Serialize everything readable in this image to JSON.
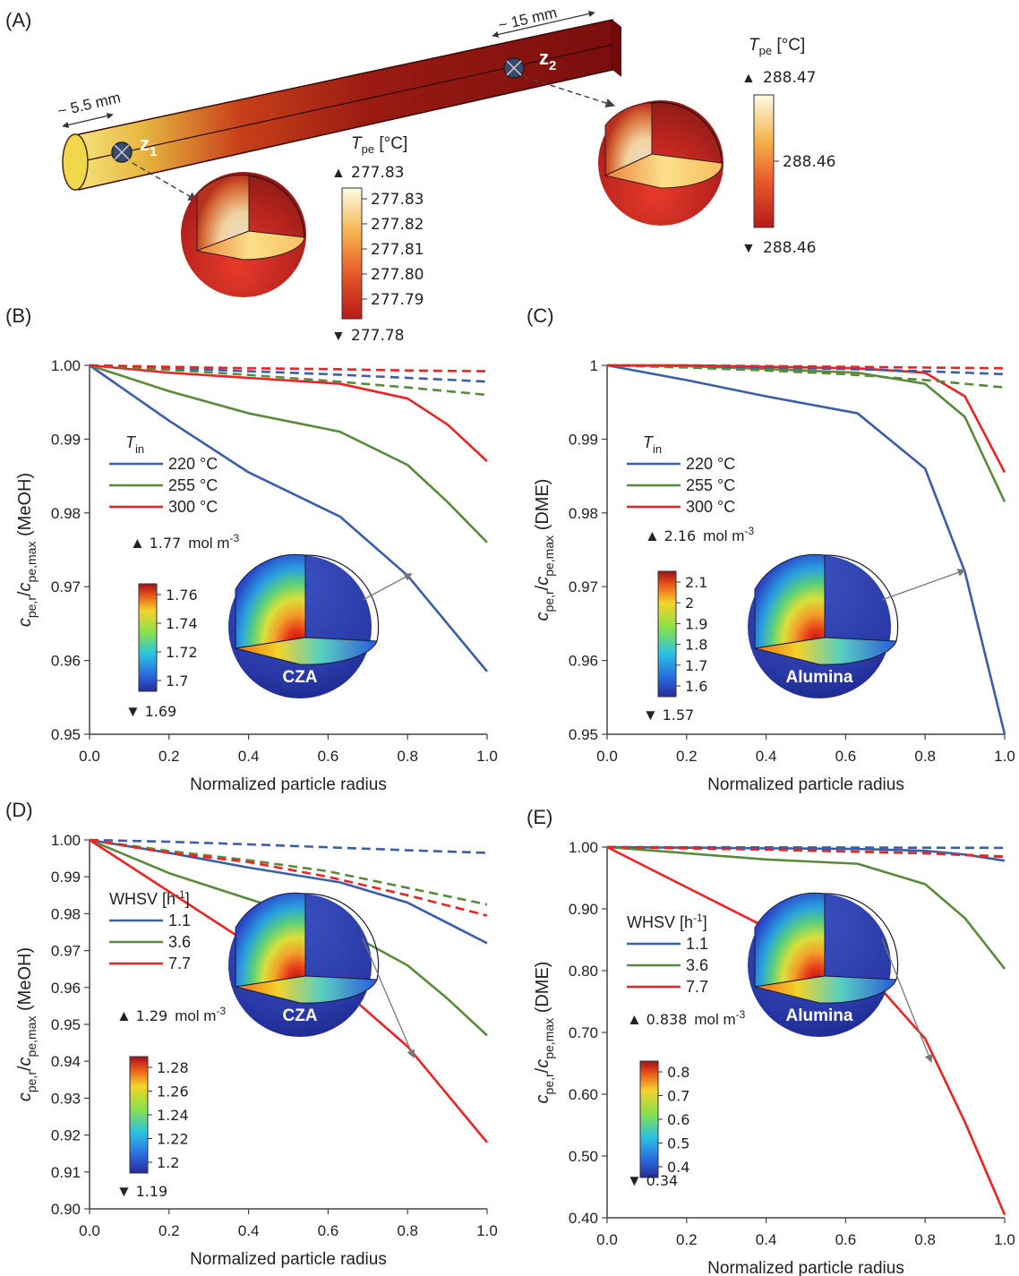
{
  "panelA": {
    "label": "(A)",
    "dim_left": "~ 5.5 mm",
    "dim_right": "~ 15 mm",
    "z1": "z",
    "z1_sub": "1",
    "z2": "z",
    "z2_sub": "2",
    "leg1": {
      "title_T": "T",
      "title_sub": "pe",
      "title_unit": " [°C]",
      "max": "277.83",
      "min": "277.78",
      "ticks": [
        "277.83",
        "277.82",
        "277.81",
        "277.80",
        "277.79"
      ]
    },
    "leg2": {
      "title_T": "T",
      "title_sub": "pe",
      "title_unit": " [°C]",
      "max": "288.47",
      "min": "288.46",
      "ticks": [
        "288.46"
      ]
    }
  },
  "colors": {
    "blue": "#3a5ea8",
    "green": "#5a8a3a",
    "red": "#ee2222"
  },
  "chart_data": [
    {
      "id": "B",
      "label": "(B)",
      "type": "line",
      "xlabel": "Normalized particle radius",
      "ylabel_main": "c",
      "ylabel_sub1": "pe,r",
      "ylabel_sep": "/",
      "ylabel_main2": "c",
      "ylabel_sub2": "pe,max",
      "ylabel_tail": " (MeOH)",
      "xlim": [
        0,
        1
      ],
      "ylim": [
        0.95,
        1.0
      ],
      "xticks": [
        "0.0",
        "0.2",
        "0.4",
        "0.6",
        "0.8",
        "1.0"
      ],
      "yticks": [
        "0.95",
        "0.96",
        "0.97",
        "0.98",
        "0.99",
        "1.00"
      ],
      "ytick_values": [
        0.95,
        0.96,
        0.97,
        0.98,
        0.99,
        1.0
      ],
      "legend_title": "T",
      "legend_title_sub": "in",
      "series": [
        {
          "name": "220 °C",
          "color": "blue",
          "style": "solid",
          "x": [
            0,
            0.2,
            0.4,
            0.63,
            0.8,
            0.9,
            1.0
          ],
          "y": [
            1.0,
            0.9925,
            0.9855,
            0.9795,
            0.9715,
            0.965,
            0.9585
          ]
        },
        {
          "name": "255 °C",
          "color": "green",
          "style": "solid",
          "x": [
            0,
            0.2,
            0.4,
            0.63,
            0.8,
            0.9,
            1.0
          ],
          "y": [
            1.0,
            0.9965,
            0.9935,
            0.991,
            0.9865,
            0.9815,
            0.976
          ]
        },
        {
          "name": "300 °C",
          "color": "red",
          "style": "solid",
          "x": [
            0,
            0.2,
            0.4,
            0.63,
            0.8,
            0.9,
            1.0
          ],
          "y": [
            1.0,
            0.999,
            0.9983,
            0.9975,
            0.9955,
            0.992,
            0.987
          ]
        },
        {
          "name": "",
          "color": "blue",
          "style": "dashed",
          "x": [
            0,
            0.2,
            0.4,
            0.6,
            0.8,
            1.0
          ],
          "y": [
            1.0,
            0.9996,
            0.9992,
            0.9988,
            0.9983,
            0.9978
          ]
        },
        {
          "name": "",
          "color": "green",
          "style": "dashed",
          "x": [
            0,
            0.2,
            0.4,
            0.6,
            0.8,
            1.0
          ],
          "y": [
            1.0,
            0.9994,
            0.9987,
            0.9979,
            0.997,
            0.996
          ]
        },
        {
          "name": "",
          "color": "red",
          "style": "dashed",
          "x": [
            0,
            0.2,
            0.4,
            0.6,
            0.8,
            1.0
          ],
          "y": [
            1.0,
            0.9998,
            0.9996,
            0.9995,
            0.9993,
            0.9992
          ]
        }
      ],
      "inset": {
        "max": "1.77",
        "unit": "mol m",
        "unit_sup": "-3",
        "min": "1.69",
        "ticks": [
          "1.76",
          "1.74",
          "1.72",
          "1.7"
        ],
        "name": "CZA"
      }
    },
    {
      "id": "C",
      "label": "(C)",
      "type": "line",
      "xlabel": "Normalized particle radius",
      "ylabel_main": "c",
      "ylabel_sub1": "pe,r",
      "ylabel_sep": "/",
      "ylabel_main2": "c",
      "ylabel_sub2": "pe,max",
      "ylabel_tail": " (DME)",
      "xlim": [
        0,
        1
      ],
      "ylim": [
        0.95,
        1.0
      ],
      "xticks": [
        "0.0",
        "0.2",
        "0.4",
        "0.6",
        "0.8",
        "1.0"
      ],
      "yticks": [
        "0.95",
        "0.96",
        "0.97",
        "0.98",
        "0.99",
        "1"
      ],
      "ytick_values": [
        0.95,
        0.96,
        0.97,
        0.98,
        0.99,
        1.0
      ],
      "legend_title": "T",
      "legend_title_sub": "in",
      "series": [
        {
          "name": "220 °C",
          "color": "blue",
          "style": "solid",
          "x": [
            0,
            0.2,
            0.4,
            0.63,
            0.8,
            0.9,
            1.0
          ],
          "y": [
            1.0,
            0.998,
            0.9958,
            0.9935,
            0.986,
            0.972,
            0.95
          ]
        },
        {
          "name": "255 °C",
          "color": "green",
          "style": "solid",
          "x": [
            0,
            0.2,
            0.4,
            0.63,
            0.8,
            0.9,
            1.0
          ],
          "y": [
            1.0,
            0.9999,
            0.9995,
            0.999,
            0.9975,
            0.993,
            0.9815
          ]
        },
        {
          "name": "300 °C",
          "color": "red",
          "style": "solid",
          "x": [
            0,
            0.2,
            0.4,
            0.63,
            0.8,
            0.9,
            1.0
          ],
          "y": [
            1.0,
            1.0,
            0.9998,
            0.9996,
            0.999,
            0.9958,
            0.9855
          ]
        },
        {
          "name": "",
          "color": "blue",
          "style": "dashed",
          "x": [
            0,
            0.2,
            0.4,
            0.6,
            0.8,
            1.0
          ],
          "y": [
            1.0,
            0.9999,
            0.9997,
            0.9995,
            0.9992,
            0.9988
          ]
        },
        {
          "name": "",
          "color": "green",
          "style": "dashed",
          "x": [
            0,
            0.2,
            0.4,
            0.6,
            0.8,
            1.0
          ],
          "y": [
            1.0,
            0.9997,
            0.9993,
            0.9988,
            0.998,
            0.997
          ]
        },
        {
          "name": "",
          "color": "red",
          "style": "dashed",
          "x": [
            0,
            0.2,
            0.4,
            0.6,
            0.8,
            1.0
          ],
          "y": [
            1.0,
            1.0,
            0.9999,
            0.9998,
            0.9997,
            0.9996
          ]
        }
      ],
      "inset": {
        "max": "2.16",
        "unit": "mol m",
        "unit_sup": "-3",
        "min": "1.57",
        "ticks": [
          "2.1",
          "2",
          "1.9",
          "1.8",
          "1.7",
          "1.6"
        ],
        "name": "Alumina"
      }
    },
    {
      "id": "D",
      "label": "(D)",
      "type": "line",
      "xlabel": "Normalized particle radius",
      "ylabel_main": "c",
      "ylabel_sub1": "pe,r",
      "ylabel_sep": "/",
      "ylabel_main2": "c",
      "ylabel_sub2": "pe,max",
      "ylabel_tail": " (MeOH)",
      "xlim": [
        0,
        1
      ],
      "ylim": [
        0.9,
        1.0
      ],
      "xticks": [
        "0.0",
        "0.2",
        "0.4",
        "0.6",
        "0.8",
        "1.0"
      ],
      "yticks": [
        "0.90",
        "0.91",
        "0.92",
        "0.93",
        "0.94",
        "0.95",
        "0.96",
        "0.97",
        "0.98",
        "0.99",
        "1.00"
      ],
      "ytick_values": [
        0.9,
        0.91,
        0.92,
        0.93,
        0.94,
        0.95,
        0.96,
        0.97,
        0.98,
        0.99,
        1.0
      ],
      "legend_title": "WHSV [h",
      "legend_title_sup": "-1",
      "legend_title_tail": "]",
      "series": [
        {
          "name": "1.1",
          "color": "blue",
          "style": "solid",
          "x": [
            0,
            0.2,
            0.4,
            0.63,
            0.8,
            0.9,
            1.0
          ],
          "y": [
            1.0,
            0.9965,
            0.9925,
            0.9885,
            0.983,
            0.9775,
            0.972
          ]
        },
        {
          "name": "3.6",
          "color": "green",
          "style": "solid",
          "x": [
            0,
            0.2,
            0.4,
            0.63,
            0.8,
            0.9,
            1.0
          ],
          "y": [
            1.0,
            0.991,
            0.984,
            0.976,
            0.966,
            0.957,
            0.947
          ]
        },
        {
          "name": "7.7",
          "color": "red",
          "style": "solid",
          "x": [
            0,
            0.2,
            0.4,
            0.63,
            0.8,
            0.9,
            1.0
          ],
          "y": [
            1.0,
            0.986,
            0.972,
            0.96,
            0.944,
            0.931,
            0.918
          ]
        },
        {
          "name": "",
          "color": "blue",
          "style": "dashed",
          "x": [
            0,
            0.2,
            0.4,
            0.6,
            0.8,
            1.0
          ],
          "y": [
            1.0,
            0.9995,
            0.9988,
            0.998,
            0.9972,
            0.9965
          ]
        },
        {
          "name": "",
          "color": "green",
          "style": "dashed",
          "x": [
            0,
            0.2,
            0.4,
            0.6,
            0.8,
            1.0
          ],
          "y": [
            1.0,
            0.997,
            0.9945,
            0.9915,
            0.987,
            0.9825
          ]
        },
        {
          "name": "",
          "color": "red",
          "style": "dashed",
          "x": [
            0,
            0.2,
            0.4,
            0.6,
            0.8,
            1.0
          ],
          "y": [
            1.0,
            0.9965,
            0.994,
            0.99,
            0.985,
            0.9795
          ]
        }
      ],
      "inset": {
        "max": "1.29",
        "unit": "mol m",
        "unit_sup": "-3",
        "min": "1.19",
        "ticks": [
          "1.28",
          "1.26",
          "1.24",
          "1.22",
          "1.2"
        ],
        "name": "CZA"
      }
    },
    {
      "id": "E",
      "label": "(E)",
      "type": "line",
      "xlabel": "Normalized particle radius",
      "ylabel_main": "c",
      "ylabel_sub1": "pe,r",
      "ylabel_sep": "/",
      "ylabel_main2": "c",
      "ylabel_sub2": "pe,max",
      "ylabel_tail": " (DME)",
      "xlim": [
        0,
        1
      ],
      "ylim": [
        0.4,
        1.0
      ],
      "xticks": [
        "0.0",
        "0.2",
        "0.4",
        "0.6",
        "0.8",
        "1.0"
      ],
      "yticks": [
        "0.40",
        "0.50",
        "0.60",
        "0.70",
        "0.80",
        "0.90",
        "1.00"
      ],
      "ytick_values": [
        0.4,
        0.5,
        0.6,
        0.7,
        0.8,
        0.9,
        1.0
      ],
      "legend_title": "WHSV [h",
      "legend_title_sup": "-1",
      "legend_title_tail": "]",
      "series": [
        {
          "name": "1.1",
          "color": "blue",
          "style": "solid",
          "x": [
            0,
            0.2,
            0.4,
            0.63,
            0.8,
            0.9,
            1.0
          ],
          "y": [
            1.0,
            0.999,
            0.998,
            0.997,
            0.994,
            0.988,
            0.978
          ]
        },
        {
          "name": "3.6",
          "color": "green",
          "style": "solid",
          "x": [
            0,
            0.2,
            0.4,
            0.63,
            0.8,
            0.9,
            1.0
          ],
          "y": [
            1.0,
            0.99,
            0.98,
            0.973,
            0.94,
            0.885,
            0.803
          ]
        },
        {
          "name": "7.7",
          "color": "red",
          "style": "solid",
          "x": [
            0,
            0.2,
            0.4,
            0.63,
            0.8,
            0.9,
            1.0
          ],
          "y": [
            1.0,
            0.935,
            0.87,
            0.813,
            0.69,
            0.555,
            0.405
          ]
        },
        {
          "name": "",
          "color": "blue",
          "style": "dashed",
          "x": [
            0,
            0.2,
            0.4,
            0.6,
            0.8,
            1.0
          ],
          "y": [
            1.0,
            0.9998,
            0.9996,
            0.9993,
            0.999,
            0.9987
          ]
        },
        {
          "name": "",
          "color": "green",
          "style": "dashed",
          "x": [
            0,
            0.2,
            0.4,
            0.6,
            0.8,
            1.0
          ],
          "y": [
            1.0,
            0.998,
            0.996,
            0.993,
            0.99,
            0.985
          ]
        },
        {
          "name": "",
          "color": "red",
          "style": "dashed",
          "x": [
            0,
            0.2,
            0.4,
            0.6,
            0.8,
            1.0
          ],
          "y": [
            1.0,
            0.998,
            0.996,
            0.993,
            0.99,
            0.984
          ]
        }
      ],
      "inset": {
        "max": "0.838",
        "unit": "mol m",
        "unit_sup": "-3",
        "min": "0.34",
        "ticks": [
          "0.8",
          "0.7",
          "0.6",
          "0.5",
          "0.4"
        ],
        "name": "Alumina"
      }
    }
  ]
}
